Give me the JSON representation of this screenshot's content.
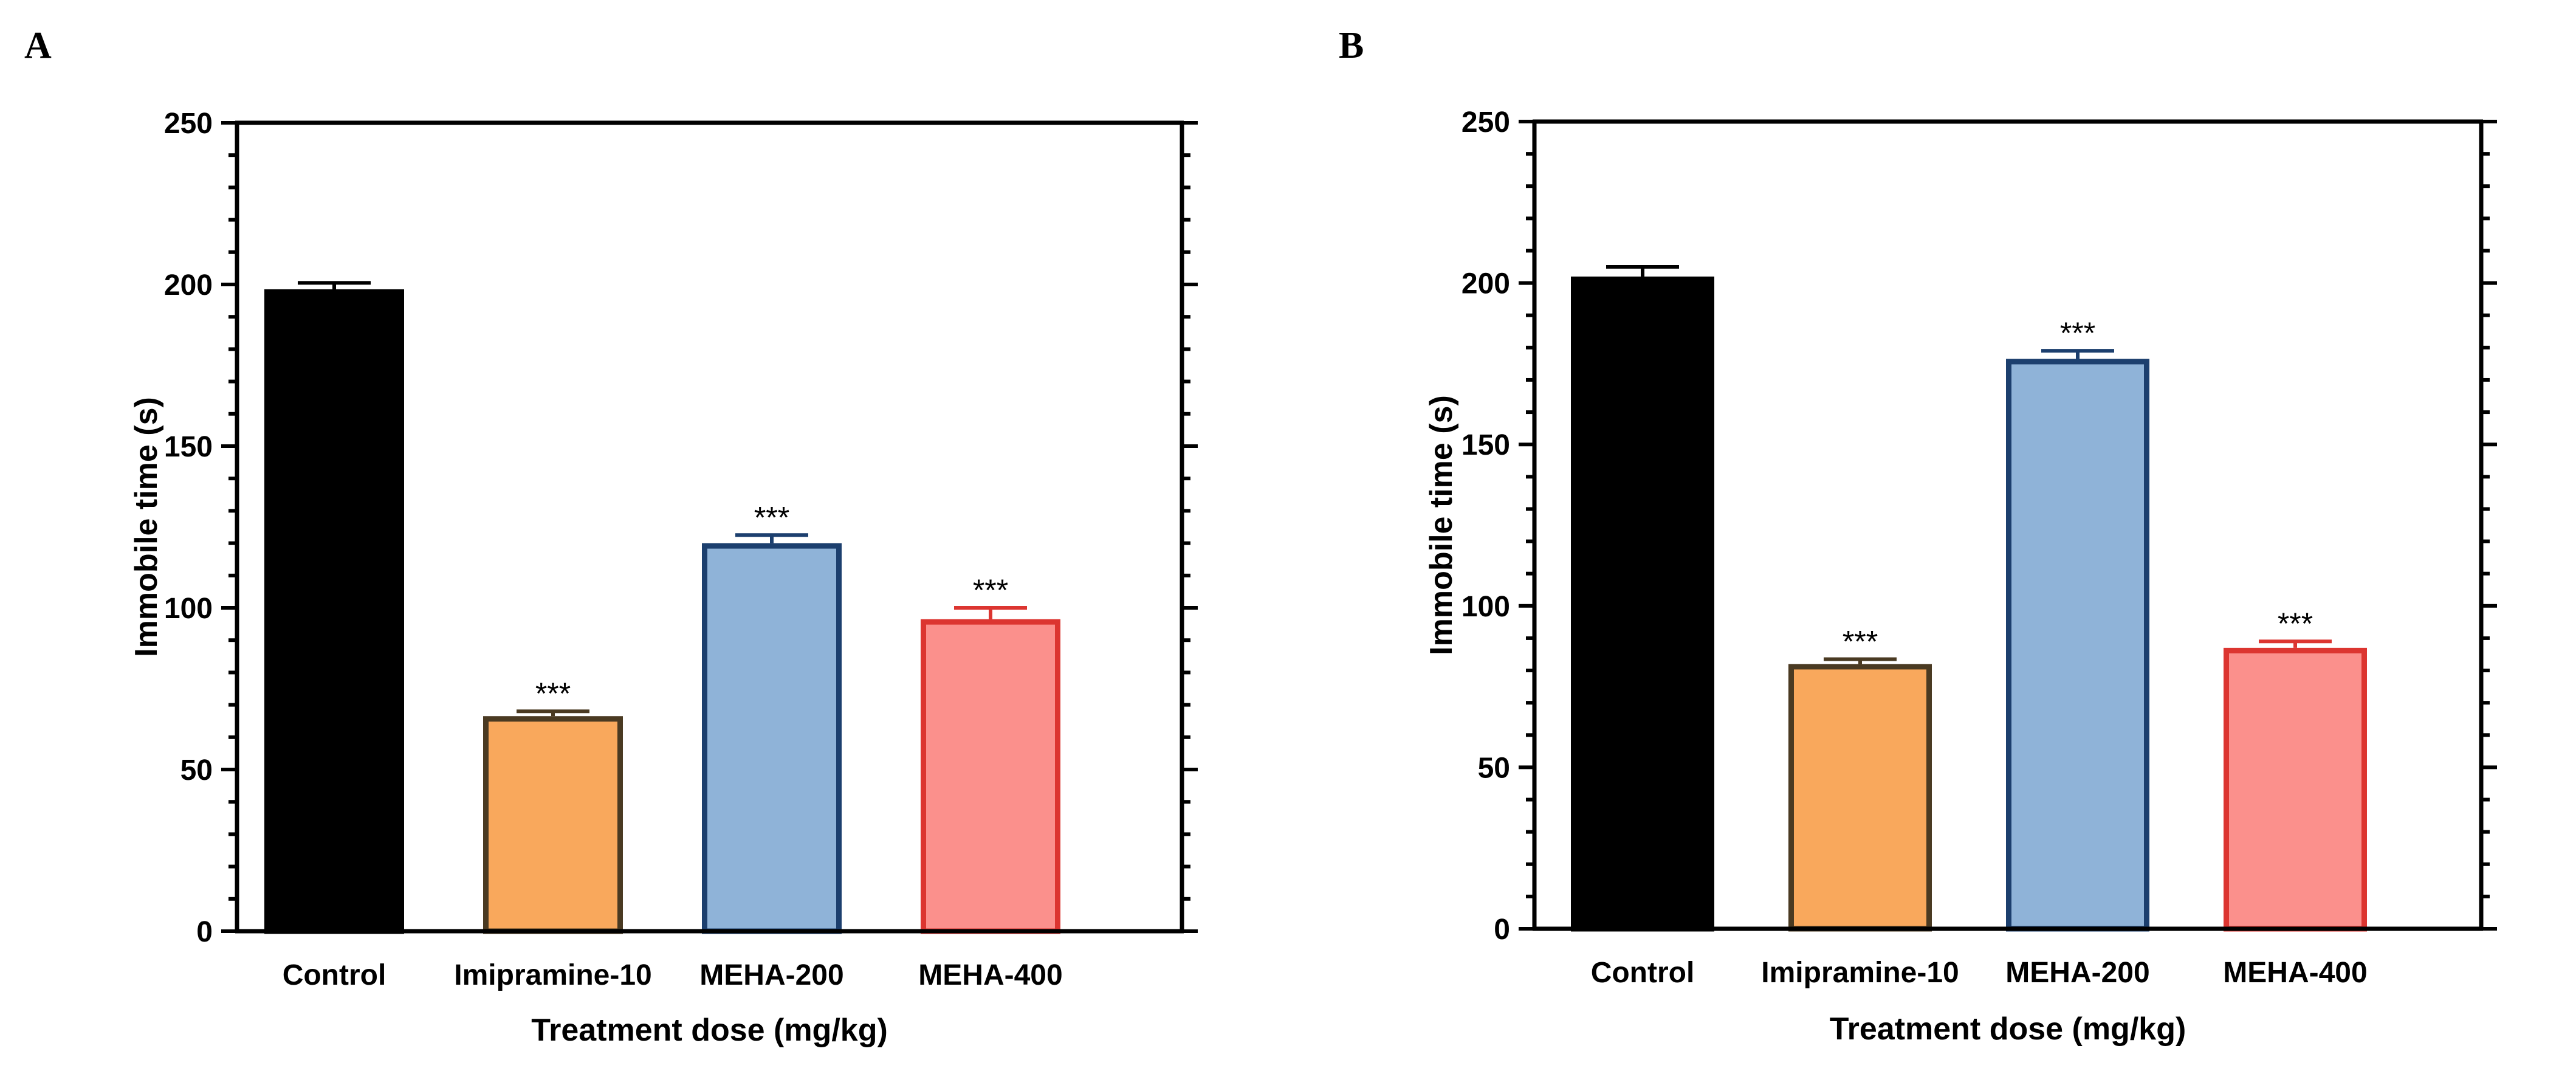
{
  "chart_data": [
    {
      "panel": "A",
      "type": "bar",
      "categories": [
        "Control",
        "Imipramine-10",
        "MEHA-200",
        "MEHA-400"
      ],
      "values": [
        198.5,
        66.5,
        120,
        96.5
      ],
      "errors": [
        2,
        1.5,
        2.5,
        3.5
      ],
      "significance": [
        "",
        "***",
        "***",
        "***"
      ],
      "xlabel": "Treatment dose (mg/kg)",
      "ylabel": "Immobile time (s)",
      "ylim": [
        0,
        250
      ],
      "yticks": [
        0,
        50,
        100,
        150,
        200,
        250
      ],
      "fill_colors": [
        "#000000",
        "#f9a85c",
        "#8fb3d8",
        "#fb908c"
      ],
      "edge_colors": [
        "#000000",
        "#4a3a22",
        "#1c3f6e",
        "#dc3530"
      ]
    },
    {
      "panel": "B",
      "type": "bar",
      "categories": [
        "Control",
        "Imipramine-10",
        "MEHA-200",
        "MEHA-400"
      ],
      "values": [
        202,
        82,
        176.5,
        87
      ],
      "errors": [
        3,
        1.5,
        2.5,
        2
      ],
      "significance": [
        "",
        "***",
        "***",
        "***"
      ],
      "xlabel": "Treatment dose (mg/kg)",
      "ylabel": "Immobile time (s)",
      "ylim": [
        0,
        250
      ],
      "yticks": [
        0,
        50,
        100,
        150,
        200,
        250
      ],
      "fill_colors": [
        "#000000",
        "#f9a85c",
        "#8fb3d8",
        "#fb908c"
      ],
      "edge_colors": [
        "#000000",
        "#4a3a22",
        "#1c3f6e",
        "#dc3530"
      ]
    }
  ]
}
